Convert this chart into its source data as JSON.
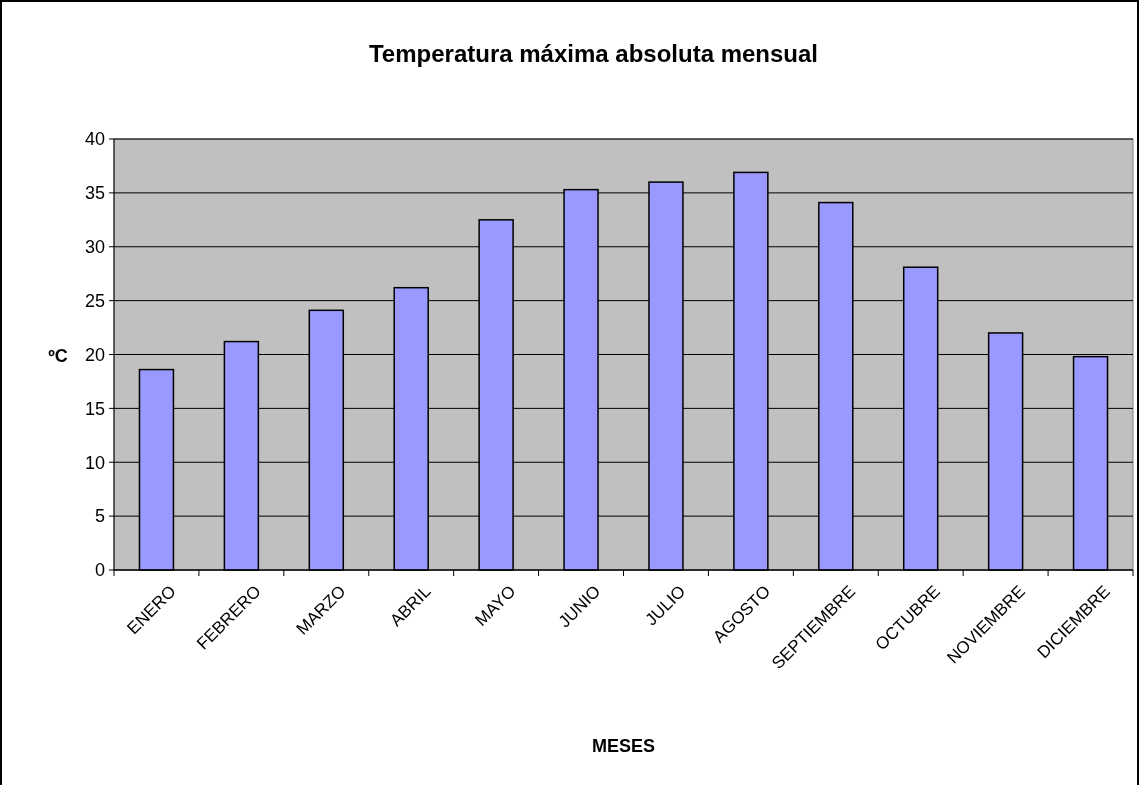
{
  "chart_data": {
    "type": "bar",
    "title": "Temperatura máxima absoluta mensual",
    "xlabel": "MESES",
    "ylabel": "ºC",
    "categories": [
      "ENERO",
      "FEBRERO",
      "MARZO",
      "ABRIL",
      "MAYO",
      "JUNIO",
      "JULIO",
      "AGOSTO",
      "SEPTIEMBRE",
      "OCTUBRE",
      "NOVIEMBRE",
      "DICIEMBRE"
    ],
    "values": [
      18.6,
      21.2,
      24.1,
      26.2,
      32.5,
      35.3,
      36.0,
      36.9,
      34.1,
      28.1,
      22.0,
      19.8
    ],
    "color": "#9999ff",
    "ylim": [
      0,
      40
    ],
    "yticks": [
      0,
      5,
      10,
      15,
      20,
      25,
      30,
      35,
      40
    ],
    "grid": "y"
  }
}
